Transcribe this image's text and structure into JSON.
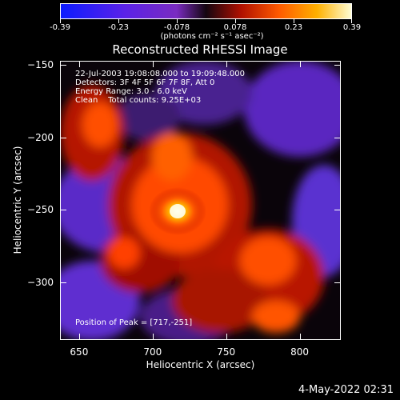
{
  "colorbar": {
    "tick_labels": [
      "-0.39",
      "-0.23",
      "-0.078",
      "0.078",
      "0.23",
      "0.39"
    ],
    "unit_label": "(photons cm⁻² s⁻¹ asec⁻²)",
    "colors": [
      "#0b1bff",
      "#5a22e8",
      "#7a2cc0",
      "#1a0a10",
      "#b01000",
      "#ff5a00",
      "#ffb000",
      "#ffffd8"
    ]
  },
  "image": {
    "title": "Reconstructed RHESSI Image",
    "info_lines": [
      "22-Jul-2003 19:08:08.000 to 19:09:48.000",
      "Detectors: 3F 4F 5F 6F 7F 8F, Att 0",
      "Energy Range: 3.0 - 6.0 keV",
      "Clean    Total counts: 9.25E+03"
    ],
    "peak_label": "Position of Peak = [717,-251]",
    "peak": [
      717,
      -251
    ]
  },
  "axes": {
    "xlabel": "Heliocentric X (arcsec)",
    "ylabel": "Heliocentric Y (arcsec)",
    "xticks": [
      "650",
      "700",
      "750",
      "800"
    ],
    "yticks": [
      "-150",
      "-200",
      "-250",
      "-300"
    ],
    "xlim": [
      637,
      828
    ],
    "ylim": [
      -340,
      -147
    ]
  },
  "footer": {
    "date": "4-May-2022 02:31"
  }
}
